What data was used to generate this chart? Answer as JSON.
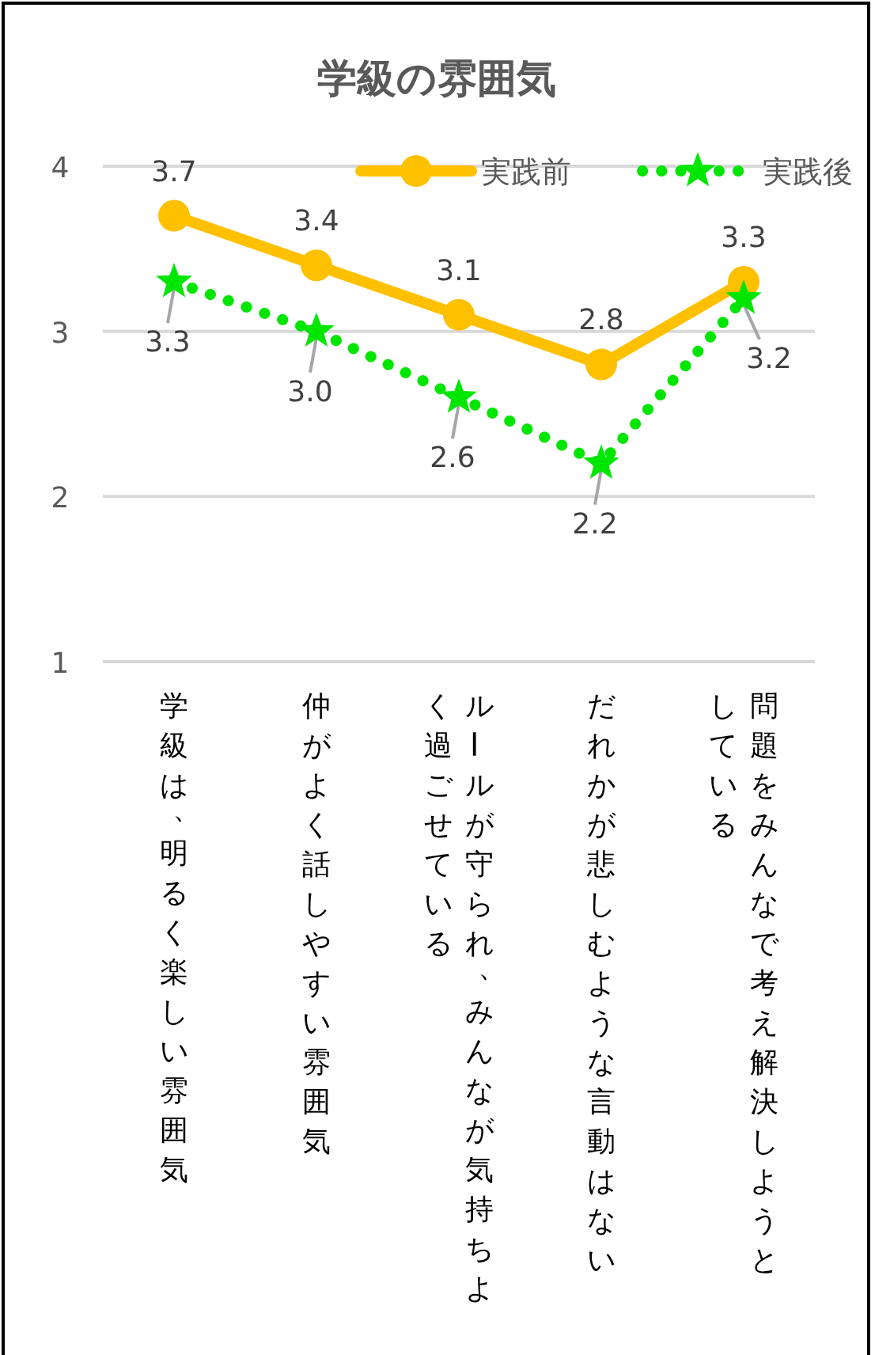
{
  "chart_data": {
    "type": "line",
    "title": "学級の雰囲気",
    "categories": [
      "学級は、明るく楽しい雰囲気",
      "仲がよく話しやすい雰囲気",
      "ルールが守られ、みんなが気持ちよく過ごせている",
      "だれかが悲しむような言動はない",
      "問題をみんなで考え解決しようとしている"
    ],
    "series": [
      {
        "name": "実践前",
        "color": "#ffc000",
        "values": [
          3.7,
          3.4,
          3.1,
          2.8,
          3.3
        ],
        "value_labels": [
          "3.7",
          "3.4",
          "3.1",
          "2.8",
          "3.3"
        ],
        "marker": "circle",
        "line_style": "solid"
      },
      {
        "name": "実践後",
        "color": "#00e600",
        "values": [
          3.3,
          3.0,
          2.6,
          2.2,
          3.2
        ],
        "value_labels": [
          "3.3",
          "3.0",
          "2.6",
          "2.2",
          "3.2"
        ],
        "marker": "star",
        "line_style": "dotted"
      }
    ],
    "ylim": [
      1,
      4
    ],
    "yticks": [
      1,
      2,
      3,
      4
    ],
    "grid": "y",
    "legend": "top right"
  }
}
